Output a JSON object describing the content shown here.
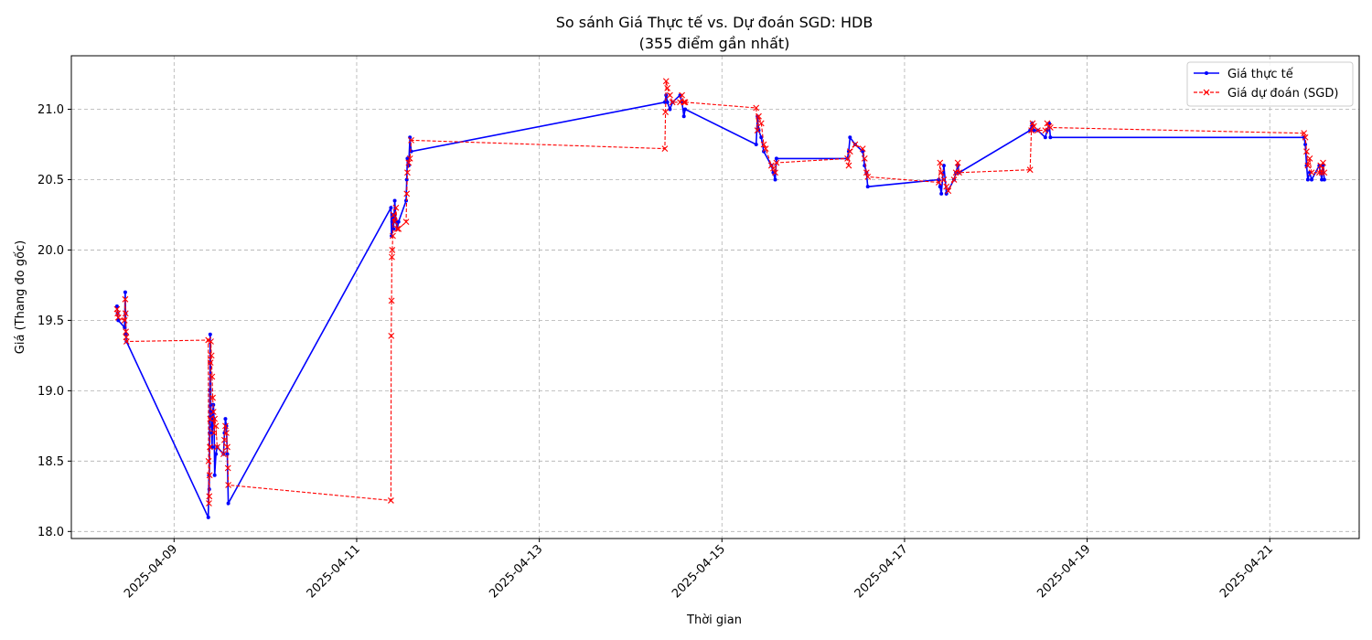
{
  "chart_data": {
    "type": "line",
    "title": "So sánh Giá Thực tế vs. Dự đoán SGD: HDB",
    "subtitle": "(355 điểm gần nhất)",
    "xlabel": "Thời gian",
    "ylabel": "Giá (Thang đo gốc)",
    "x_ticks": [
      "2025-04-09",
      "2025-04-11",
      "2025-04-13",
      "2025-04-15",
      "2025-04-17",
      "2025-04-19",
      "2025-04-21"
    ],
    "y_ticks": [
      "18.0",
      "18.5",
      "19.0",
      "19.5",
      "20.0",
      "20.5",
      "21.0"
    ],
    "xlim": [
      "2025-04-07T21:00",
      "2025-04-21T23:30"
    ],
    "ylim": [
      17.95,
      21.38
    ],
    "grid": true,
    "legend_position": "top-right",
    "series": [
      {
        "name": "Giá thực tế",
        "color": "#0000ff",
        "style": "solid",
        "marker": "dot",
        "points": [
          [
            "2025-04-08T09:00",
            19.6
          ],
          [
            "2025-04-08T09:10",
            19.55
          ],
          [
            "2025-04-08T09:20",
            19.5
          ],
          [
            "2025-04-08T11:00",
            19.45
          ],
          [
            "2025-04-08T11:10",
            19.7
          ],
          [
            "2025-04-08T11:15",
            19.55
          ],
          [
            "2025-04-08T11:20",
            19.4
          ],
          [
            "2025-04-08T11:30",
            19.35
          ],
          [
            "2025-04-09T09:00",
            18.1
          ],
          [
            "2025-04-09T09:10",
            18.4
          ],
          [
            "2025-04-09T09:15",
            18.3
          ],
          [
            "2025-04-09T09:20",
            18.7
          ],
          [
            "2025-04-09T09:25",
            19.0
          ],
          [
            "2025-04-09T09:30",
            19.4
          ],
          [
            "2025-04-09T09:35",
            19.2
          ],
          [
            "2025-04-09T09:40",
            18.9
          ],
          [
            "2025-04-09T09:50",
            18.75
          ],
          [
            "2025-04-09T10:00",
            18.6
          ],
          [
            "2025-04-09T10:10",
            18.85
          ],
          [
            "2025-04-09T10:20",
            18.9
          ],
          [
            "2025-04-09T10:30",
            18.8
          ],
          [
            "2025-04-09T10:40",
            18.4
          ],
          [
            "2025-04-09T11:00",
            18.55
          ],
          [
            "2025-04-09T11:20",
            18.6
          ],
          [
            "2025-04-09T13:00",
            18.55
          ],
          [
            "2025-04-09T13:15",
            18.7
          ],
          [
            "2025-04-09T13:30",
            18.8
          ],
          [
            "2025-04-09T13:45",
            18.75
          ],
          [
            "2025-04-09T14:00",
            18.55
          ],
          [
            "2025-04-09T14:15",
            18.2
          ],
          [
            "2025-04-11T09:00",
            20.3
          ],
          [
            "2025-04-11T09:10",
            20.1
          ],
          [
            "2025-04-11T09:20",
            20.2
          ],
          [
            "2025-04-11T09:30",
            20.25
          ],
          [
            "2025-04-11T09:40",
            20.15
          ],
          [
            "2025-04-11T10:00",
            20.35
          ],
          [
            "2025-04-11T10:20",
            20.2
          ],
          [
            "2025-04-11T10:40",
            20.15
          ],
          [
            "2025-04-11T11:00",
            20.2
          ],
          [
            "2025-04-11T13:00",
            20.35
          ],
          [
            "2025-04-11T13:10",
            20.5
          ],
          [
            "2025-04-11T13:20",
            20.65
          ],
          [
            "2025-04-11T13:40",
            20.6
          ],
          [
            "2025-04-11T14:00",
            20.8
          ],
          [
            "2025-04-11T14:20",
            20.7
          ],
          [
            "2025-04-14T09:00",
            21.05
          ],
          [
            "2025-04-14T09:20",
            21.1
          ],
          [
            "2025-04-14T09:40",
            21.05
          ],
          [
            "2025-04-14T10:20",
            21.0
          ],
          [
            "2025-04-14T11:00",
            21.05
          ],
          [
            "2025-04-14T13:00",
            21.1
          ],
          [
            "2025-04-14T13:30",
            21.05
          ],
          [
            "2025-04-14T14:00",
            20.95
          ],
          [
            "2025-04-14T14:20",
            21.0
          ],
          [
            "2025-04-15T09:00",
            20.75
          ],
          [
            "2025-04-15T09:20",
            20.95
          ],
          [
            "2025-04-15T09:40",
            20.85
          ],
          [
            "2025-04-15T10:20",
            20.8
          ],
          [
            "2025-04-15T11:00",
            20.7
          ],
          [
            "2025-04-15T13:00",
            20.6
          ],
          [
            "2025-04-15T13:30",
            20.55
          ],
          [
            "2025-04-15T14:00",
            20.5
          ],
          [
            "2025-04-15T14:20",
            20.65
          ],
          [
            "2025-04-16T09:00",
            20.65
          ],
          [
            "2025-04-16T09:20",
            20.7
          ],
          [
            "2025-04-16T09:40",
            20.8
          ],
          [
            "2025-04-16T11:00",
            20.75
          ],
          [
            "2025-04-16T13:00",
            20.7
          ],
          [
            "2025-04-16T13:30",
            20.6
          ],
          [
            "2025-04-16T14:00",
            20.55
          ],
          [
            "2025-04-16T14:20",
            20.45
          ],
          [
            "2025-04-17T09:00",
            20.5
          ],
          [
            "2025-04-17T09:20",
            20.45
          ],
          [
            "2025-04-17T09:40",
            20.4
          ],
          [
            "2025-04-17T10:20",
            20.6
          ],
          [
            "2025-04-17T11:00",
            20.4
          ],
          [
            "2025-04-17T13:00",
            20.5
          ],
          [
            "2025-04-17T13:30",
            20.55
          ],
          [
            "2025-04-17T14:00",
            20.6
          ],
          [
            "2025-04-17T14:20",
            20.55
          ],
          [
            "2025-04-18T09:00",
            20.85
          ],
          [
            "2025-04-18T09:30",
            20.9
          ],
          [
            "2025-04-18T10:00",
            20.85
          ],
          [
            "2025-04-18T11:00",
            20.85
          ],
          [
            "2025-04-18T13:00",
            20.8
          ],
          [
            "2025-04-18T13:30",
            20.85
          ],
          [
            "2025-04-18T14:00",
            20.9
          ],
          [
            "2025-04-18T14:20",
            20.8
          ],
          [
            "2025-04-21T09:00",
            20.8
          ],
          [
            "2025-04-21T09:20",
            20.75
          ],
          [
            "2025-04-21T09:40",
            20.6
          ],
          [
            "2025-04-21T10:00",
            20.5
          ],
          [
            "2025-04-21T10:30",
            20.55
          ],
          [
            "2025-04-21T11:00",
            20.5
          ],
          [
            "2025-04-21T13:00",
            20.6
          ],
          [
            "2025-04-21T13:20",
            20.55
          ],
          [
            "2025-04-21T13:40",
            20.5
          ],
          [
            "2025-04-21T14:00",
            20.6
          ],
          [
            "2025-04-21T14:20",
            20.5
          ]
        ]
      },
      {
        "name": "Giá dự đoán (SGD)",
        "color": "#ff0000",
        "style": "dashed",
        "marker": "x",
        "points": [
          [
            "2025-04-08T09:00",
            19.58
          ],
          [
            "2025-04-08T09:10",
            19.55
          ],
          [
            "2025-04-08T09:20",
            19.52
          ],
          [
            "2025-04-08T11:00",
            19.5
          ],
          [
            "2025-04-08T11:10",
            19.65
          ],
          [
            "2025-04-08T11:15",
            19.55
          ],
          [
            "2025-04-08T11:20",
            19.42
          ],
          [
            "2025-04-08T11:25",
            19.38
          ],
          [
            "2025-04-08T11:30",
            19.35
          ],
          [
            "2025-04-09T09:00",
            19.36
          ],
          [
            "2025-04-09T09:05",
            18.5
          ],
          [
            "2025-04-09T09:10",
            18.2
          ],
          [
            "2025-04-09T09:15",
            18.25
          ],
          [
            "2025-04-09T09:20",
            18.4
          ],
          [
            "2025-04-09T09:25",
            18.6
          ],
          [
            "2025-04-09T09:30",
            18.8
          ],
          [
            "2025-04-09T09:35",
            19.2
          ],
          [
            "2025-04-09T09:40",
            19.35
          ],
          [
            "2025-04-09T09:50",
            19.25
          ],
          [
            "2025-04-09T10:00",
            19.1
          ],
          [
            "2025-04-09T10:10",
            18.95
          ],
          [
            "2025-04-09T10:20",
            18.85
          ],
          [
            "2025-04-09T10:30",
            18.7
          ],
          [
            "2025-04-09T10:40",
            18.8
          ],
          [
            "2025-04-09T11:00",
            18.75
          ],
          [
            "2025-04-09T11:20",
            18.6
          ],
          [
            "2025-04-09T13:00",
            18.55
          ],
          [
            "2025-04-09T13:15",
            18.65
          ],
          [
            "2025-04-09T13:30",
            18.75
          ],
          [
            "2025-04-09T13:45",
            18.7
          ],
          [
            "2025-04-09T14:00",
            18.6
          ],
          [
            "2025-04-09T14:10",
            18.45
          ],
          [
            "2025-04-09T14:15",
            18.33
          ],
          [
            "2025-04-11T09:00",
            18.22
          ],
          [
            "2025-04-11T09:05",
            19.39
          ],
          [
            "2025-04-11T09:10",
            19.64
          ],
          [
            "2025-04-11T09:15",
            19.95
          ],
          [
            "2025-04-11T09:20",
            20.0
          ],
          [
            "2025-04-11T09:30",
            20.1
          ],
          [
            "2025-04-11T09:40",
            20.25
          ],
          [
            "2025-04-11T10:00",
            20.2
          ],
          [
            "2025-04-11T10:20",
            20.3
          ],
          [
            "2025-04-11T10:40",
            20.15
          ],
          [
            "2025-04-11T11:00",
            20.15
          ],
          [
            "2025-04-11T13:00",
            20.2
          ],
          [
            "2025-04-11T13:10",
            20.4
          ],
          [
            "2025-04-11T13:20",
            20.55
          ],
          [
            "2025-04-11T13:40",
            20.62
          ],
          [
            "2025-04-11T14:00",
            20.65
          ],
          [
            "2025-04-11T14:20",
            20.78
          ],
          [
            "2025-04-14T09:00",
            20.72
          ],
          [
            "2025-04-14T09:10",
            20.98
          ],
          [
            "2025-04-14T09:20",
            21.2
          ],
          [
            "2025-04-14T09:40",
            21.15
          ],
          [
            "2025-04-14T10:20",
            21.1
          ],
          [
            "2025-04-14T11:00",
            21.05
          ],
          [
            "2025-04-14T13:00",
            21.05
          ],
          [
            "2025-04-14T13:30",
            21.1
          ],
          [
            "2025-04-14T14:00",
            21.05
          ],
          [
            "2025-04-14T14:20",
            21.05
          ],
          [
            "2025-04-15T09:00",
            21.01
          ],
          [
            "2025-04-15T09:20",
            20.85
          ],
          [
            "2025-04-15T09:40",
            20.95
          ],
          [
            "2025-04-15T10:20",
            20.9
          ],
          [
            "2025-04-15T11:00",
            20.75
          ],
          [
            "2025-04-15T11:30",
            20.72
          ],
          [
            "2025-04-15T13:00",
            20.6
          ],
          [
            "2025-04-15T13:30",
            20.58
          ],
          [
            "2025-04-15T14:00",
            20.55
          ],
          [
            "2025-04-15T14:20",
            20.62
          ],
          [
            "2025-04-16T09:00",
            20.65
          ],
          [
            "2025-04-16T09:20",
            20.6
          ],
          [
            "2025-04-16T09:40",
            20.7
          ],
          [
            "2025-04-16T11:00",
            20.75
          ],
          [
            "2025-04-16T13:00",
            20.72
          ],
          [
            "2025-04-16T13:30",
            20.65
          ],
          [
            "2025-04-16T14:00",
            20.55
          ],
          [
            "2025-04-16T14:20",
            20.52
          ],
          [
            "2025-04-17T09:00",
            20.48
          ],
          [
            "2025-04-17T09:20",
            20.62
          ],
          [
            "2025-04-17T09:40",
            20.55
          ],
          [
            "2025-04-17T10:20",
            20.5
          ],
          [
            "2025-04-17T11:00",
            20.45
          ],
          [
            "2025-04-17T11:30",
            20.42
          ],
          [
            "2025-04-17T13:00",
            20.5
          ],
          [
            "2025-04-17T13:30",
            20.55
          ],
          [
            "2025-04-17T14:00",
            20.62
          ],
          [
            "2025-04-17T14:20",
            20.55
          ],
          [
            "2025-04-18T09:00",
            20.57
          ],
          [
            "2025-04-18T09:20",
            20.85
          ],
          [
            "2025-04-18T09:40",
            20.9
          ],
          [
            "2025-04-18T10:00",
            20.88
          ],
          [
            "2025-04-18T11:00",
            20.85
          ],
          [
            "2025-04-18T13:00",
            20.85
          ],
          [
            "2025-04-18T13:30",
            20.9
          ],
          [
            "2025-04-18T14:00",
            20.88
          ],
          [
            "2025-04-18T14:20",
            20.87
          ],
          [
            "2025-04-21T09:00",
            20.83
          ],
          [
            "2025-04-21T09:20",
            20.8
          ],
          [
            "2025-04-21T09:40",
            20.7
          ],
          [
            "2025-04-21T10:00",
            20.6
          ],
          [
            "2025-04-21T10:30",
            20.65
          ],
          [
            "2025-04-21T11:00",
            20.55
          ],
          [
            "2025-04-21T13:00",
            20.55
          ],
          [
            "2025-04-21T13:20",
            20.6
          ],
          [
            "2025-04-21T13:40",
            20.55
          ],
          [
            "2025-04-21T14:00",
            20.62
          ],
          [
            "2025-04-21T14:20",
            20.55
          ]
        ]
      }
    ]
  }
}
